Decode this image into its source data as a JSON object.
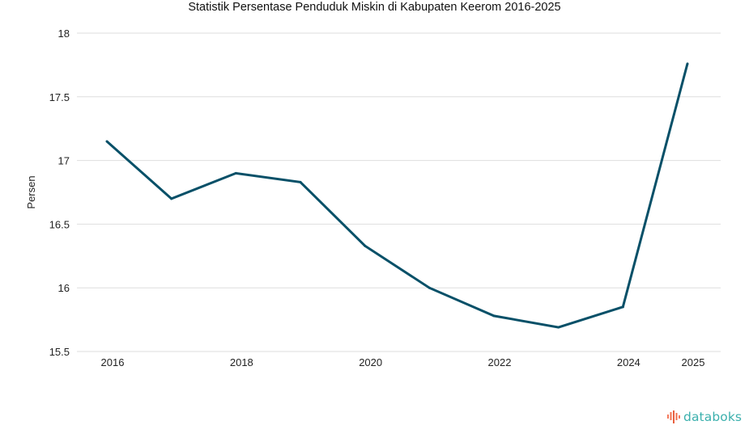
{
  "chart_data": {
    "type": "line",
    "title": "Statistik Persentase Penduduk Miskin di Kabupaten Keerom 2016-2025",
    "xlabel": "",
    "ylabel": "Persen",
    "x": [
      2016,
      2017,
      2018,
      2019,
      2020,
      2021,
      2022,
      2023,
      2024,
      2025
    ],
    "x_tick_labels": [
      "2016",
      "2018",
      "2020",
      "2022",
      "2024",
      "2025"
    ],
    "x_tick_values": [
      2016,
      2018,
      2020,
      2022,
      2024,
      2025
    ],
    "y_tick_labels": [
      "18",
      "17.5",
      "17",
      "16.5",
      "16",
      "15.5"
    ],
    "y_tick_values": [
      18,
      17.5,
      17,
      16.5,
      16,
      15.5
    ],
    "ylim": [
      15.5,
      18
    ],
    "grid": true,
    "legend": "none",
    "series": [
      {
        "name": "Persentase Penduduk Miskin",
        "color": "#075068",
        "values": [
          17.15,
          16.7,
          16.9,
          16.83,
          16.33,
          16.0,
          15.78,
          15.69,
          15.85,
          17.76
        ]
      }
    ]
  },
  "brand": {
    "name": "databoks",
    "color": "#3bb0ad",
    "icon": "databoks-bars-icon"
  }
}
